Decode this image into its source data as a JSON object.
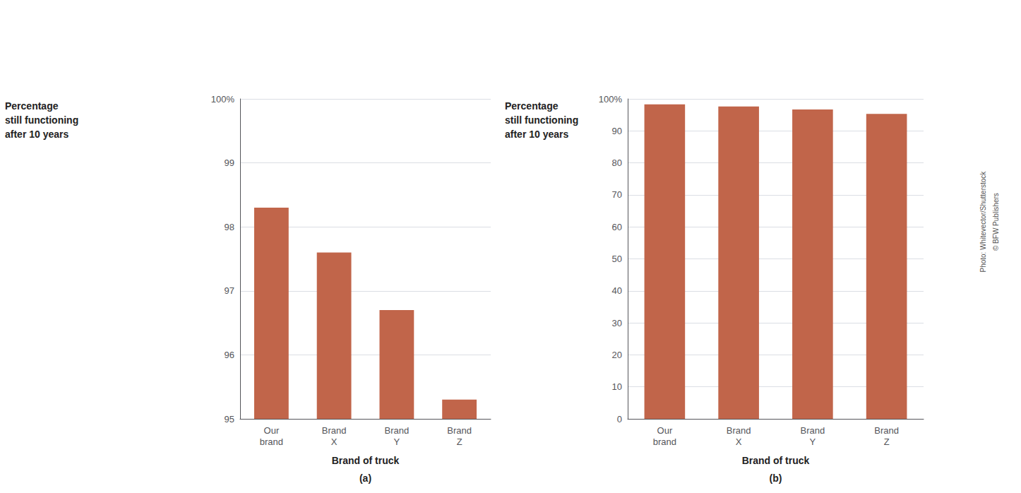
{
  "chart_data": [
    {
      "type": "bar",
      "title": "(a)",
      "xlabel": "Brand of truck",
      "ylabel": "Percentage\nstill functioning\nafter 10 years",
      "categories": [
        "Our\nbrand",
        "Brand\nX",
        "Brand\nY",
        "Brand\nZ"
      ],
      "values": [
        98.3,
        97.6,
        96.7,
        95.3
      ],
      "color": "#C1654A",
      "ylim": [
        95,
        100
      ],
      "yticks": [
        95,
        96,
        97,
        98,
        99,
        {
          "value": 100,
          "label": "100%"
        }
      ],
      "grid": true
    },
    {
      "type": "bar",
      "title": "(b)",
      "xlabel": "Brand of truck",
      "ylabel": "Percentage\nstill functioning\nafter 10 years",
      "categories": [
        "Our\nbrand",
        "Brand\nX",
        "Brand\nY",
        "Brand\nZ"
      ],
      "values": [
        98.3,
        97.6,
        96.7,
        95.3
      ],
      "color": "#C1654A",
      "ylim": [
        0,
        100
      ],
      "yticks": [
        0,
        10,
        20,
        30,
        40,
        50,
        60,
        70,
        80,
        90,
        {
          "value": 100,
          "label": "100%"
        }
      ],
      "grid": true,
      "annotations": [
        "Photo: Whitevector/Shutterstock",
        "© BFW Publishers"
      ]
    }
  ]
}
